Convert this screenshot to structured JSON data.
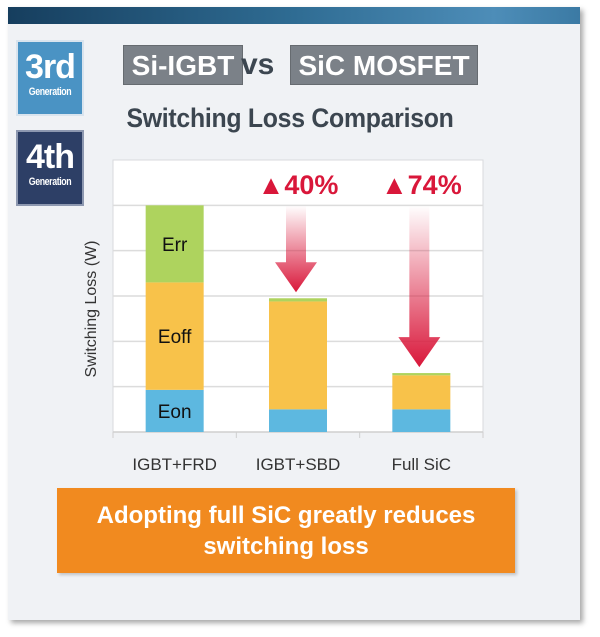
{
  "badges": {
    "third": {
      "big": "3rd",
      "small": "Generation"
    },
    "fourth": {
      "big": "4th",
      "small": "Generation"
    }
  },
  "header": {
    "left": "Si-IGBT",
    "vs": "vs",
    "right": "SiC MOSFET"
  },
  "colors": {
    "eon": "#5db8e0",
    "eoff": "#f8c24a",
    "err": "#aed35e",
    "reduction": "#d9173a",
    "banner": "#f18a1f"
  },
  "chart_data": {
    "type": "bar",
    "stacked": true,
    "title": "Switching Loss Comparison",
    "xlabel": "",
    "ylabel": "Switching Loss (W)",
    "ylim": [
      0,
      6
    ],
    "grid": true,
    "categories": [
      "IGBT+FRD",
      "IGBT+SBD",
      "Full SiC"
    ],
    "series": [
      {
        "name": "Eon",
        "values": [
          0.93,
          0.5,
          0.5
        ]
      },
      {
        "name": "Eoff",
        "values": [
          2.37,
          2.38,
          0.75
        ]
      },
      {
        "name": "Err",
        "values": [
          1.7,
          0.07,
          0.05
        ]
      }
    ],
    "annotations": [
      {
        "category": "IGBT+SBD",
        "text": "▲40%"
      },
      {
        "category": "Full SiC",
        "text": "▲74%"
      }
    ]
  },
  "banner": {
    "line1": "Adopting full SiC greatly reduces",
    "line2": "switching loss"
  }
}
